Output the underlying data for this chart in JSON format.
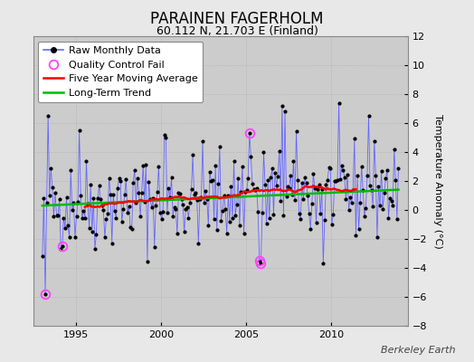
{
  "title": "PARAINEN FAGERHOLM",
  "subtitle": "60.112 N, 21.703 E (Finland)",
  "ylabel": "Temperature Anomaly (°C)",
  "credit": "Berkeley Earth",
  "ylim": [
    -8,
    12
  ],
  "yticks": [
    -8,
    -6,
    -4,
    -2,
    0,
    2,
    4,
    6,
    8,
    10,
    12
  ],
  "xlim_start": 1992.5,
  "xlim_end": 2014.5,
  "xticks": [
    1995,
    2000,
    2005,
    2010
  ],
  "fig_bg_color": "#e8e8e8",
  "plot_bg_color": "#cccccc",
  "raw_line_color": "#6666ff",
  "raw_marker_color": "#000000",
  "ma_color": "#ff0000",
  "trend_color": "#00bb00",
  "qc_color": "#ff44ff",
  "title_fontsize": 12,
  "subtitle_fontsize": 9,
  "legend_fontsize": 8,
  "ylabel_fontsize": 8,
  "credit_fontsize": 8,
  "seed": 42
}
